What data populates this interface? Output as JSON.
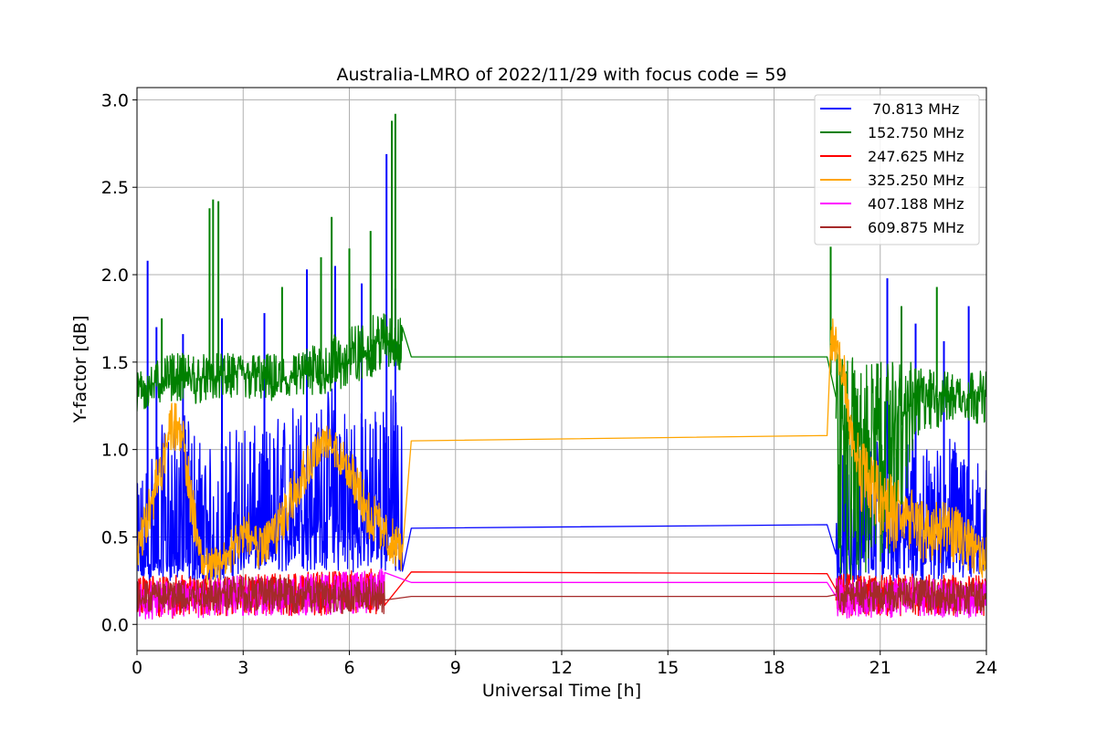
{
  "chart_data": {
    "type": "line",
    "title": "Australia-LMRO of 2022/11/29 with focus code = 59",
    "xlabel": "Universal Time [h]",
    "ylabel": "Y-factor [dB]",
    "xlim": [
      0,
      24
    ],
    "ylim": [
      -0.15,
      3.07
    ],
    "xticks": [
      0,
      3,
      6,
      9,
      12,
      15,
      18,
      21,
      24
    ],
    "xtick_labels": [
      "0",
      "3",
      "6",
      "9",
      "12",
      "15",
      "18",
      "21",
      "24"
    ],
    "yticks": [
      0.0,
      0.5,
      1.0,
      1.5,
      2.0,
      2.5,
      3.0
    ],
    "ytick_labels": [
      "0.0",
      "0.5",
      "1.0",
      "1.5",
      "2.0",
      "2.5",
      "3.0"
    ],
    "grid": true,
    "legend_position": "top-right",
    "series": [
      {
        "name": " 70.813 MHz",
        "color": "#0000ff",
        "x": [
          0,
          0.5,
          1,
          1.5,
          2,
          2.5,
          3,
          3.5,
          4,
          4.5,
          5,
          5.5,
          6,
          6.5,
          7,
          7.5,
          7.75,
          19.5,
          19.75,
          20,
          20.5,
          21,
          21.5,
          22,
          22.5,
          23,
          23.5,
          24
        ],
        "y": [
          0.3,
          0.35,
          0.4,
          0.35,
          0.3,
          0.4,
          0.45,
          0.4,
          0.45,
          0.55,
          0.6,
          0.55,
          0.5,
          0.55,
          0.5,
          0.5,
          0.55,
          0.57,
          0.4,
          0.35,
          0.45,
          0.5,
          0.5,
          0.45,
          0.5,
          0.45,
          0.4,
          0.45
        ],
        "envelope_low": [
          0.25,
          0.25,
          0.25,
          0.25,
          0.25,
          0.25,
          0.3,
          0.3,
          0.3,
          0.3,
          0.3,
          0.3,
          0.3,
          0.3,
          0.3,
          0.3,
          null,
          null,
          0.2,
          0.2,
          0.22,
          0.25,
          0.25,
          0.25,
          0.25,
          0.25,
          0.25,
          0.25
        ],
        "envelope_high": [
          0.8,
          1.1,
          1.2,
          1.2,
          1.0,
          1.1,
          1.2,
          1.1,
          1.2,
          1.3,
          1.2,
          1.4,
          1.3,
          1.2,
          1.4,
          1.3,
          null,
          null,
          0.9,
          1.0,
          1.1,
          1.1,
          1.0,
          1.1,
          1.0,
          1.1,
          1.0,
          0.9
        ],
        "spikes": [
          [
            0.3,
            2.08
          ],
          [
            0.55,
            1.7
          ],
          [
            1.3,
            1.66
          ],
          [
            2.4,
            1.75
          ],
          [
            3.6,
            1.78
          ],
          [
            4.8,
            2.03
          ],
          [
            5.6,
            2.05
          ],
          [
            6.35,
            1.95
          ],
          [
            7.05,
            2.69
          ],
          [
            7.3,
            1.92
          ],
          [
            21.2,
            1.98
          ],
          [
            22.0,
            1.72
          ],
          [
            22.8,
            1.62
          ],
          [
            23.5,
            1.82
          ]
        ]
      },
      {
        "name": "152.750 MHz",
        "color": "#008000",
        "x": [
          0,
          0.5,
          1,
          1.5,
          2,
          2.5,
          3,
          3.5,
          4,
          4.5,
          5,
          5.5,
          6,
          6.5,
          7,
          7.5,
          7.75,
          19.5,
          19.75,
          20,
          20.5,
          21,
          21.5,
          22,
          22.5,
          23,
          23.5,
          24
        ],
        "y": [
          1.32,
          1.38,
          1.4,
          1.38,
          1.4,
          1.4,
          1.42,
          1.4,
          1.38,
          1.4,
          1.42,
          1.45,
          1.5,
          1.55,
          1.6,
          1.6,
          1.53,
          1.53,
          1.3,
          1.0,
          1.0,
          1.0,
          1.1,
          1.3,
          1.3,
          1.3,
          1.3,
          1.3
        ],
        "envelope_low": [
          1.2,
          1.25,
          1.28,
          1.25,
          1.28,
          1.28,
          1.28,
          1.28,
          1.25,
          1.28,
          1.3,
          1.32,
          1.35,
          1.4,
          1.45,
          1.45,
          null,
          null,
          0.05,
          0.2,
          0.25,
          0.3,
          0.5,
          1.0,
          1.1,
          1.15,
          1.15,
          1.15
        ],
        "envelope_high": [
          1.45,
          1.5,
          1.55,
          1.55,
          1.55,
          1.55,
          1.55,
          1.55,
          1.55,
          1.55,
          1.6,
          1.65,
          1.7,
          1.75,
          1.8,
          1.75,
          null,
          null,
          1.6,
          1.55,
          1.5,
          1.5,
          1.5,
          1.5,
          1.45,
          1.45,
          1.45,
          1.45
        ],
        "spikes": [
          [
            0.7,
            1.75
          ],
          [
            2.05,
            2.38
          ],
          [
            2.15,
            2.43
          ],
          [
            2.3,
            2.42
          ],
          [
            4.1,
            1.93
          ],
          [
            5.2,
            2.1
          ],
          [
            5.5,
            2.33
          ],
          [
            6.0,
            2.15
          ],
          [
            6.6,
            2.25
          ],
          [
            7.2,
            2.88
          ],
          [
            7.3,
            2.92
          ],
          [
            19.6,
            2.16
          ],
          [
            21.6,
            1.82
          ],
          [
            22.6,
            1.93
          ]
        ]
      },
      {
        "name": "247.625 MHz",
        "color": "#ff0000",
        "x": [
          0,
          1,
          2,
          3,
          4,
          5,
          6,
          7,
          7.75,
          19.5,
          19.75,
          20,
          21,
          22,
          23,
          24
        ],
        "y": [
          0.18,
          0.18,
          0.18,
          0.19,
          0.19,
          0.2,
          0.21,
          0.22,
          0.3,
          0.29,
          0.2,
          0.19,
          0.18,
          0.19,
          0.18,
          0.18
        ],
        "envelope_low": [
          0.05,
          0.03,
          0.05,
          0.05,
          0.05,
          0.05,
          0.06,
          0.06,
          null,
          null,
          0.05,
          0.02,
          0.05,
          0.05,
          0.05,
          0.05
        ],
        "envelope_high": [
          0.28,
          0.28,
          0.28,
          0.29,
          0.29,
          0.3,
          0.31,
          0.32,
          null,
          null,
          0.29,
          0.29,
          0.28,
          0.29,
          0.28,
          0.28
        ]
      },
      {
        "name": "325.250 MHz",
        "color": "#ffa500",
        "x": [
          0,
          0.25,
          0.5,
          0.75,
          1,
          1.25,
          1.5,
          1.75,
          2,
          2.5,
          3,
          3.5,
          4,
          4.5,
          5,
          5.25,
          5.5,
          6,
          6.5,
          7,
          7.5,
          7.75,
          19.5,
          19.6,
          19.75,
          20,
          20.25,
          20.5,
          21,
          21.5,
          22,
          22.5,
          23,
          23.5,
          24
        ],
        "y": [
          0.4,
          0.55,
          0.75,
          0.95,
          1.15,
          1.1,
          0.75,
          0.45,
          0.3,
          0.35,
          0.55,
          0.4,
          0.55,
          0.8,
          0.95,
          1.05,
          1.0,
          0.9,
          0.65,
          0.5,
          0.4,
          1.05,
          1.08,
          1.6,
          1.6,
          1.4,
          1.0,
          0.85,
          0.7,
          0.6,
          0.55,
          0.5,
          0.55,
          0.45,
          0.35
        ],
        "envelope_low": [
          0.3,
          0.45,
          0.6,
          0.8,
          1.0,
          0.95,
          0.6,
          0.3,
          0.22,
          0.25,
          0.4,
          0.3,
          0.4,
          0.65,
          0.85,
          0.95,
          0.9,
          0.75,
          0.5,
          0.38,
          0.3,
          null,
          null,
          1.5,
          1.5,
          1.25,
          0.85,
          0.6,
          0.45,
          0.4,
          0.35,
          0.35,
          0.35,
          0.3,
          0.25
        ],
        "envelope_high": [
          0.55,
          0.7,
          0.95,
          1.1,
          1.28,
          1.25,
          0.9,
          0.6,
          0.42,
          0.48,
          0.68,
          0.55,
          0.7,
          0.95,
          1.1,
          1.15,
          1.12,
          1.02,
          0.8,
          0.65,
          0.55,
          null,
          null,
          1.78,
          1.7,
          1.55,
          1.15,
          1.05,
          0.95,
          0.85,
          0.75,
          0.7,
          0.7,
          0.6,
          0.5
        ]
      },
      {
        "name": "407.188 MHz",
        "color": "#ff00ff",
        "x": [
          0,
          1,
          2,
          3,
          4,
          5,
          6,
          7,
          7.75,
          19.5,
          19.75,
          20,
          21,
          22,
          23,
          24
        ],
        "y": [
          0.15,
          0.15,
          0.16,
          0.17,
          0.17,
          0.18,
          0.19,
          0.2,
          0.24,
          0.24,
          0.16,
          0.15,
          0.15,
          0.16,
          0.15,
          0.15
        ],
        "envelope_low": [
          0.03,
          0.03,
          0.04,
          0.05,
          0.05,
          0.05,
          0.06,
          0.06,
          null,
          null,
          0.04,
          0.03,
          0.04,
          0.04,
          0.04,
          0.03
        ],
        "envelope_high": [
          0.25,
          0.25,
          0.26,
          0.28,
          0.28,
          0.29,
          0.3,
          0.32,
          null,
          null,
          0.27,
          0.26,
          0.26,
          0.27,
          0.26,
          0.26
        ]
      },
      {
        "name": "609.875 MHz",
        "color": "#a52a2a",
        "x": [
          0,
          1,
          2,
          3,
          4,
          5,
          6,
          7,
          7.75,
          19.5,
          19.75,
          20,
          21,
          22,
          23,
          24
        ],
        "y": [
          0.15,
          0.16,
          0.17,
          0.17,
          0.16,
          0.16,
          0.16,
          0.16,
          0.16,
          0.16,
          0.17,
          0.16,
          0.16,
          0.17,
          0.16,
          0.16
        ],
        "envelope_low": [
          0.06,
          0.07,
          0.08,
          0.08,
          0.07,
          0.06,
          0.06,
          0.06,
          null,
          null,
          0.08,
          0.06,
          0.07,
          0.07,
          0.06,
          0.06
        ],
        "envelope_high": [
          0.25,
          0.26,
          0.27,
          0.28,
          0.27,
          0.26,
          0.26,
          0.26,
          null,
          null,
          0.27,
          0.26,
          0.26,
          0.27,
          0.26,
          0.26
        ]
      }
    ]
  }
}
